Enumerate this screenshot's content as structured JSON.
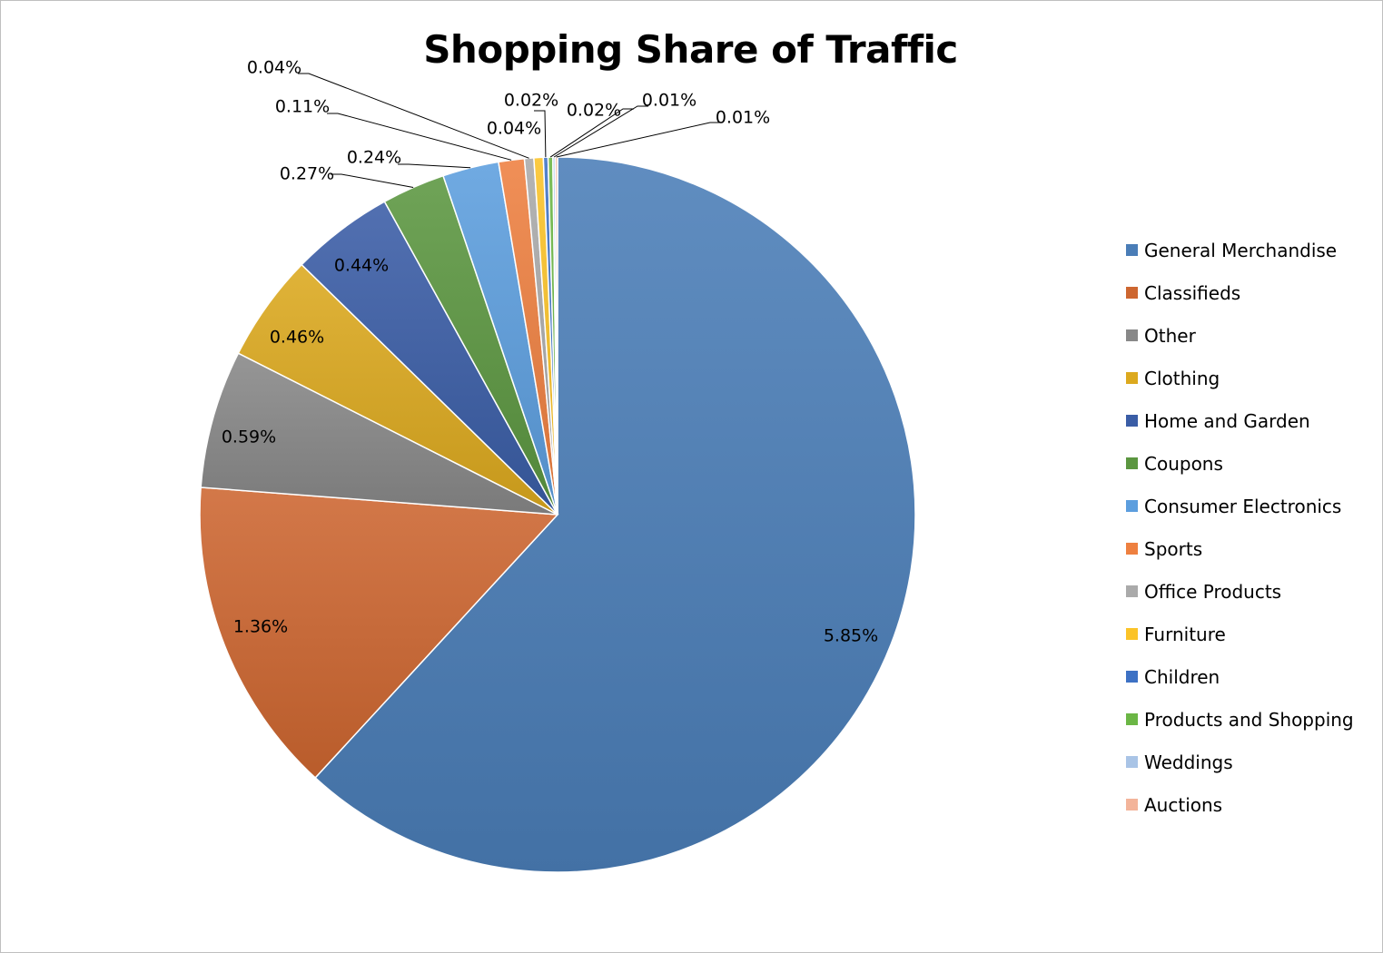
{
  "chart_data": {
    "type": "pie",
    "title": "Shopping Share of Traffic",
    "legend_position": "right",
    "slices": [
      {
        "name": "General Merchandise",
        "value": 5.85,
        "label": "5.85%",
        "color": "#4a7db7"
      },
      {
        "name": "Classifieds",
        "value": 1.36,
        "label": "1.36%",
        "color": "#cd6630"
      },
      {
        "name": "Other",
        "value": 0.59,
        "label": "0.59%",
        "color": "#888888"
      },
      {
        "name": "Clothing",
        "value": 0.46,
        "label": "0.46%",
        "color": "#dca91e"
      },
      {
        "name": "Home and Garden",
        "value": 0.44,
        "label": "0.44%",
        "color": "#3a5da6"
      },
      {
        "name": "Coupons",
        "value": 0.27,
        "label": "0.27%",
        "color": "#5b9640"
      },
      {
        "name": "Consumer Electronics",
        "value": 0.24,
        "label": "0.24%",
        "color": "#5c9ede"
      },
      {
        "name": "Sports",
        "value": 0.11,
        "label": "0.11%",
        "color": "#ee8040"
      },
      {
        "name": "Office Products",
        "value": 0.04,
        "label": "0.04%",
        "color": "#aaaaaa"
      },
      {
        "name": "Furniture",
        "value": 0.04,
        "label": "0.04%",
        "color": "#fbc328"
      },
      {
        "name": "Children",
        "value": 0.02,
        "label": "0.02%",
        "color": "#3d71c4"
      },
      {
        "name": "Products and Shopping",
        "value": 0.02,
        "label": "0.02%",
        "color": "#6bb645"
      },
      {
        "name": "Weddings",
        "value": 0.01,
        "label": "0.01%",
        "color": "#a9c4e6"
      },
      {
        "name": "Auctions",
        "value": 0.01,
        "label": "0.01%",
        "color": "#f3b49a"
      }
    ]
  }
}
